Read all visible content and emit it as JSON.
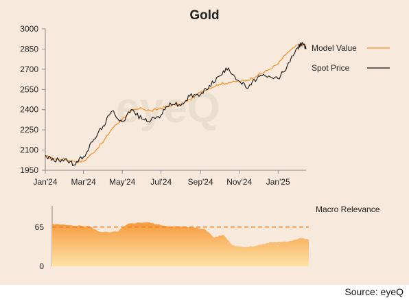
{
  "source": "Source: eyeQ",
  "watermark": "eyeQ",
  "colors": {
    "background": "#f7eadc",
    "spot_price": "#111111",
    "model_value": "#f28c28",
    "area_top": "#f79a3e",
    "area_bottom": "#fde2a6",
    "threshold": "#ee7d22",
    "axis": "#8a8a8a"
  },
  "chart_data": [
    {
      "type": "line",
      "title": "Gold",
      "xlabel": "",
      "ylabel": "",
      "x_tick_labels": [
        "Jan'24",
        "Mar'24",
        "May'24",
        "Jul'24",
        "Sep'24",
        "Nov'24",
        "Jan'25"
      ],
      "x_tick_dates": [
        "2024-01-01",
        "2024-03-01",
        "2024-05-01",
        "2024-07-01",
        "2024-09-01",
        "2024-11-01",
        "2025-01-01"
      ],
      "x_range": [
        "2024-01-01",
        "2025-02-14"
      ],
      "y_ticks": [
        1950,
        2100,
        2250,
        2400,
        2550,
        2700,
        2850,
        3000
      ],
      "ylim": [
        1950,
        3000
      ],
      "legend_position": "right",
      "grid": false,
      "series": [
        {
          "name": "Model Value",
          "points": [
            [
              "2024-01-01",
              2055
            ],
            [
              "2024-01-15",
              2035
            ],
            [
              "2024-02-01",
              2030
            ],
            [
              "2024-02-15",
              2015
            ],
            [
              "2024-03-01",
              2015
            ],
            [
              "2024-03-15",
              2075
            ],
            [
              "2024-04-01",
              2160
            ],
            [
              "2024-04-15",
              2260
            ],
            [
              "2024-05-01",
              2330
            ],
            [
              "2024-05-15",
              2390
            ],
            [
              "2024-06-01",
              2410
            ],
            [
              "2024-06-15",
              2390
            ],
            [
              "2024-07-01",
              2410
            ],
            [
              "2024-07-15",
              2430
            ],
            [
              "2024-08-01",
              2440
            ],
            [
              "2024-08-15",
              2475
            ],
            [
              "2024-09-01",
              2530
            ],
            [
              "2024-09-15",
              2560
            ],
            [
              "2024-10-01",
              2590
            ],
            [
              "2024-10-15",
              2600
            ],
            [
              "2024-11-01",
              2610
            ],
            [
              "2024-11-15",
              2620
            ],
            [
              "2024-12-01",
              2660
            ],
            [
              "2024-12-15",
              2690
            ],
            [
              "2025-01-01",
              2740
            ],
            [
              "2025-01-15",
              2820
            ],
            [
              "2025-02-01",
              2880
            ],
            [
              "2025-02-14",
              2880
            ]
          ]
        },
        {
          "name": "Spot Price",
          "points": [
            [
              "2024-01-01",
              2060
            ],
            [
              "2024-01-15",
              2020
            ],
            [
              "2024-02-01",
              2035
            ],
            [
              "2024-02-15",
              1990
            ],
            [
              "2024-03-01",
              2050
            ],
            [
              "2024-03-15",
              2160
            ],
            [
              "2024-04-01",
              2280
            ],
            [
              "2024-04-15",
              2390
            ],
            [
              "2024-05-01",
              2310
            ],
            [
              "2024-05-15",
              2400
            ],
            [
              "2024-06-01",
              2330
            ],
            [
              "2024-06-15",
              2320
            ],
            [
              "2024-07-01",
              2360
            ],
            [
              "2024-07-15",
              2450
            ],
            [
              "2024-08-01",
              2430
            ],
            [
              "2024-08-15",
              2500
            ],
            [
              "2024-09-01",
              2510
            ],
            [
              "2024-09-15",
              2580
            ],
            [
              "2024-10-01",
              2650
            ],
            [
              "2024-10-15",
              2710
            ],
            [
              "2024-11-01",
              2610
            ],
            [
              "2024-11-15",
              2560
            ],
            [
              "2024-12-01",
              2650
            ],
            [
              "2024-12-15",
              2640
            ],
            [
              "2025-01-01",
              2630
            ],
            [
              "2025-01-15",
              2720
            ],
            [
              "2025-02-01",
              2860
            ],
            [
              "2025-02-08",
              2900
            ],
            [
              "2025-02-14",
              2850
            ]
          ]
        }
      ]
    },
    {
      "type": "area",
      "title": "Macro Relevance",
      "y_ticks": [
        0,
        65
      ],
      "ylim": [
        0,
        100
      ],
      "threshold": 65,
      "x_range": [
        "2024-01-01",
        "2025-02-14"
      ],
      "series": [
        {
          "name": "Macro Relevance",
          "points": [
            [
              "2024-01-01",
              70
            ],
            [
              "2024-02-01",
              68
            ],
            [
              "2024-03-01",
              66
            ],
            [
              "2024-03-15",
              58
            ],
            [
              "2024-04-01",
              56
            ],
            [
              "2024-04-15",
              58
            ],
            [
              "2024-05-01",
              70
            ],
            [
              "2024-05-15",
              72
            ],
            [
              "2024-06-01",
              73
            ],
            [
              "2024-06-15",
              70
            ],
            [
              "2024-07-01",
              67
            ],
            [
              "2024-08-01",
              65
            ],
            [
              "2024-09-01",
              62
            ],
            [
              "2024-09-15",
              48
            ],
            [
              "2024-10-01",
              52
            ],
            [
              "2024-10-15",
              35
            ],
            [
              "2024-11-01",
              32
            ],
            [
              "2024-11-15",
              33
            ],
            [
              "2024-12-01",
              36
            ],
            [
              "2024-12-15",
              40
            ],
            [
              "2025-01-01",
              40
            ],
            [
              "2025-01-15",
              42
            ],
            [
              "2025-02-01",
              47
            ],
            [
              "2025-02-14",
              44
            ]
          ]
        }
      ]
    }
  ]
}
